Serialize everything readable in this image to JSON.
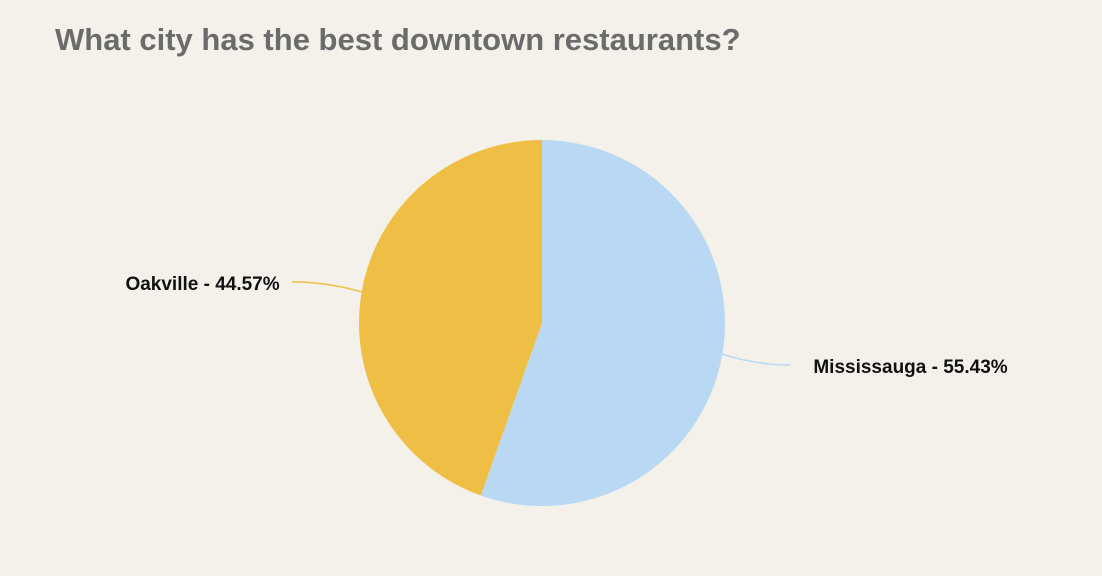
{
  "chart_data": {
    "type": "pie",
    "title": "What city has the best downtown restaurants?",
    "values": [
      55.43,
      44.57
    ],
    "value_labels": [
      "Mississauga - 55.43%",
      "Oakville - 44.57%"
    ],
    "colors": [
      "#b9d8f4",
      "#efbf45"
    ]
  }
}
